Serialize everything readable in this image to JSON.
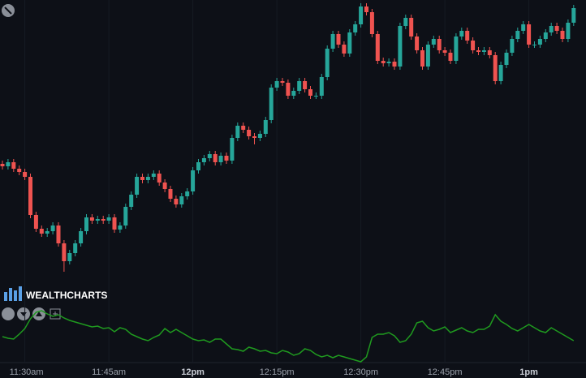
{
  "logo": "WEALTHCHARTS",
  "chart_data": [
    {
      "type": "candlestick",
      "categories": [
        null,
        null,
        null,
        null,
        "11:30am",
        null,
        null,
        null,
        null,
        null,
        null,
        null,
        null,
        null,
        null,
        null,
        null,
        null,
        null,
        "11:45am",
        null,
        null,
        null,
        null,
        null,
        null,
        null,
        null,
        null,
        null,
        null,
        null,
        null,
        null,
        "12pm",
        null,
        null,
        null,
        null,
        null,
        null,
        null,
        null,
        null,
        null,
        null,
        null,
        null,
        null,
        "12:15pm",
        null,
        null,
        null,
        null,
        null,
        null,
        null,
        null,
        null,
        null,
        null,
        null,
        null,
        null,
        "12:30pm",
        null,
        null,
        null,
        null,
        null,
        null,
        null,
        null,
        null,
        null,
        null,
        null,
        null,
        null,
        "12:45pm",
        null,
        null,
        null,
        null,
        null,
        null,
        null,
        null,
        null,
        null,
        null,
        null,
        null,
        null,
        "1pm",
        null,
        null,
        null,
        null,
        null,
        null,
        null,
        null
      ],
      "open": [
        138,
        135,
        140,
        132,
        128,
        122,
        75,
        58,
        52,
        55,
        62,
        40,
        18,
        28,
        40,
        55,
        72,
        68,
        70,
        68,
        72,
        57,
        62,
        85,
        100,
        122,
        118,
        122,
        126,
        115,
        107,
        95,
        88,
        98,
        104,
        130,
        140,
        145,
        150,
        140,
        148,
        142,
        170,
        185,
        180,
        172,
        170,
        175,
        192,
        232,
        240,
        238,
        222,
        228,
        240,
        230,
        222,
        222,
        245,
        280,
        298,
        285,
        274,
        300,
        310,
        332,
        325,
        298,
        265,
        262,
        264,
        258,
        308,
        318,
        295,
        278,
        258,
        285,
        292,
        278,
        275,
        265,
        295,
        302,
        290,
        278,
        276,
        278,
        272,
        240,
        260,
        275,
        292,
        302,
        310,
        285,
        285,
        292,
        300,
        308,
        302,
        292,
        312
      ],
      "high": [
        142,
        144,
        144,
        136,
        132,
        126,
        79,
        62,
        59,
        66,
        66,
        44,
        32,
        44,
        59,
        76,
        76,
        74,
        74,
        76,
        76,
        66,
        89,
        104,
        126,
        126,
        126,
        130,
        130,
        119,
        111,
        99,
        102,
        108,
        134,
        144,
        149,
        154,
        154,
        152,
        152,
        174,
        189,
        189,
        184,
        176,
        179,
        196,
        236,
        244,
        244,
        242,
        232,
        244,
        244,
        234,
        226,
        249,
        284,
        302,
        302,
        289,
        304,
        314,
        336,
        336,
        329,
        302,
        269,
        268,
        268,
        312,
        322,
        322,
        299,
        282,
        289,
        296,
        296,
        282,
        279,
        299,
        306,
        306,
        294,
        282,
        282,
        282,
        276,
        264,
        279,
        296,
        306,
        314,
        314,
        289,
        296,
        304,
        312,
        312,
        306,
        316,
        334
      ],
      "low": [
        131,
        131,
        128,
        124,
        118,
        71,
        54,
        48,
        48,
        51,
        36,
        5,
        14,
        24,
        36,
        51,
        64,
        64,
        64,
        64,
        53,
        53,
        58,
        81,
        96,
        114,
        114,
        118,
        111,
        103,
        91,
        84,
        84,
        94,
        100,
        126,
        136,
        141,
        136,
        136,
        138,
        138,
        166,
        176,
        168,
        162,
        166,
        171,
        188,
        228,
        234,
        218,
        218,
        224,
        226,
        218,
        218,
        218,
        241,
        276,
        281,
        270,
        270,
        296,
        306,
        321,
        294,
        261,
        258,
        258,
        254,
        254,
        304,
        291,
        274,
        254,
        254,
        281,
        274,
        271,
        261,
        261,
        291,
        286,
        274,
        272,
        272,
        268,
        236,
        236,
        256,
        271,
        288,
        298,
        281,
        281,
        281,
        288,
        296,
        298,
        288,
        288,
        308
      ],
      "close": [
        135,
        140,
        132,
        128,
        122,
        75,
        58,
        52,
        55,
        62,
        40,
        18,
        28,
        40,
        55,
        72,
        68,
        70,
        68,
        72,
        57,
        62,
        85,
        100,
        122,
        118,
        122,
        126,
        115,
        107,
        95,
        88,
        98,
        104,
        130,
        140,
        145,
        150,
        140,
        148,
        142,
        170,
        185,
        180,
        172,
        170,
        175,
        192,
        232,
        240,
        238,
        222,
        228,
        240,
        230,
        222,
        222,
        245,
        280,
        298,
        285,
        274,
        300,
        310,
        332,
        325,
        298,
        265,
        262,
        264,
        258,
        308,
        318,
        295,
        278,
        258,
        285,
        292,
        278,
        275,
        265,
        295,
        302,
        290,
        278,
        276,
        278,
        272,
        240,
        260,
        275,
        292,
        302,
        310,
        285,
        285,
        292,
        300,
        308,
        302,
        292,
        312,
        330
      ],
      "ylim": [
        0,
        340
      ],
      "up_color": "#26a69a",
      "down_color": "#ef5350"
    },
    {
      "type": "line",
      "values": [
        45,
        43,
        42,
        48,
        55,
        67,
        75,
        77,
        73,
        70,
        72,
        68,
        65,
        63,
        61,
        59,
        57,
        58,
        55,
        56,
        51,
        56,
        54,
        48,
        45,
        42,
        40,
        44,
        47,
        55,
        50,
        54,
        50,
        46,
        42,
        40,
        41,
        38,
        42,
        42,
        36,
        30,
        29,
        27,
        32,
        30,
        27,
        28,
        25,
        24,
        28,
        26,
        22,
        24,
        30,
        28,
        23,
        20,
        22,
        19,
        22,
        20,
        18,
        16,
        14,
        20,
        44,
        48,
        48,
        50,
        46,
        38,
        40,
        48,
        62,
        64,
        56,
        52,
        54,
        57,
        50,
        53,
        56,
        52,
        50,
        54,
        54,
        58,
        72,
        64,
        60,
        55,
        52,
        56,
        60,
        56,
        52,
        50,
        56,
        52,
        48,
        44,
        40
      ],
      "ylim": [
        0,
        90
      ],
      "color": "#1f9a1f"
    }
  ]
}
